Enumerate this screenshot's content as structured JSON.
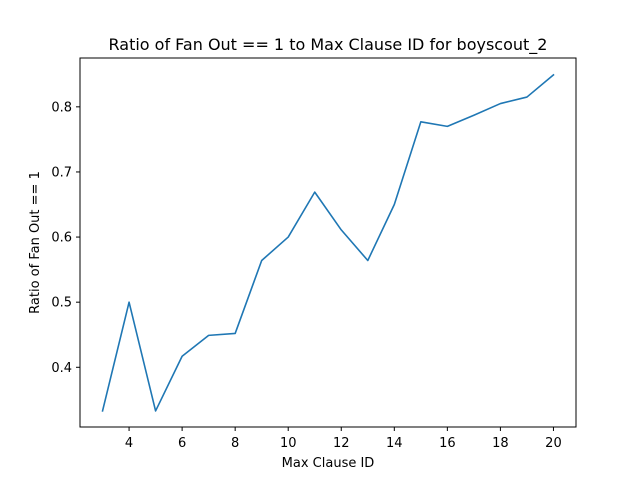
{
  "chart_data": {
    "type": "line",
    "title": "Ratio of Fan Out == 1 to Max Clause ID for boyscout_2",
    "xlabel": "Max Clause ID",
    "ylabel": "Ratio of Fan Out == 1",
    "xlim": [
      2.15,
      20.85
    ],
    "ylim": [
      0.3083,
      0.875
    ],
    "xticks": [
      4,
      6,
      8,
      10,
      12,
      14,
      16,
      18,
      20
    ],
    "yticks": [
      0.4,
      0.5,
      0.6,
      0.7,
      0.8
    ],
    "ytick_labels": [
      "0.4",
      "0.5",
      "0.6",
      "0.7",
      "0.8"
    ],
    "grid": false,
    "series": [
      {
        "color": "#1f77b4",
        "x": [
          3,
          4,
          5,
          6,
          7,
          8,
          9,
          10,
          11,
          12,
          13,
          14,
          15,
          16,
          17,
          18,
          19,
          20
        ],
        "y": [
          0.333,
          0.5,
          0.333,
          0.417,
          0.449,
          0.452,
          0.564,
          0.6,
          0.669,
          0.611,
          0.564,
          0.65,
          0.777,
          0.77,
          0.787,
          0.805,
          0.815,
          0.849
        ]
      }
    ]
  }
}
